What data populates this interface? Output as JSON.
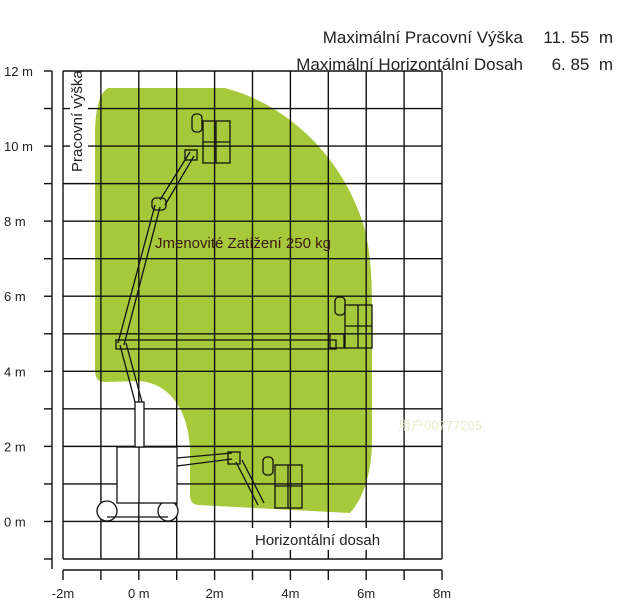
{
  "specs": [
    {
      "label": "Maximální Pracovní Výška",
      "value": "11. 55  m"
    },
    {
      "label": "Maximální Horizontální Dosah",
      "value": "6. 85  m"
    }
  ],
  "diagram": {
    "y_axis_title": "Pracovní výška",
    "x_axis_title": "Horizontální dosah",
    "load_label": "Jmenovité Zatížení 250 kg",
    "y_ticks": [
      "12 m",
      "10 m",
      "8 m",
      "6 m",
      "4 m",
      "2 m",
      "0 m"
    ],
    "x_ticks": [
      "-2m",
      "0 m",
      "2m",
      "4m",
      "6m",
      "8m"
    ],
    "watermark": "用户00777205",
    "colors": {
      "envelope": "#a5c93a",
      "grid": "#111111",
      "text": "#222222"
    }
  }
}
